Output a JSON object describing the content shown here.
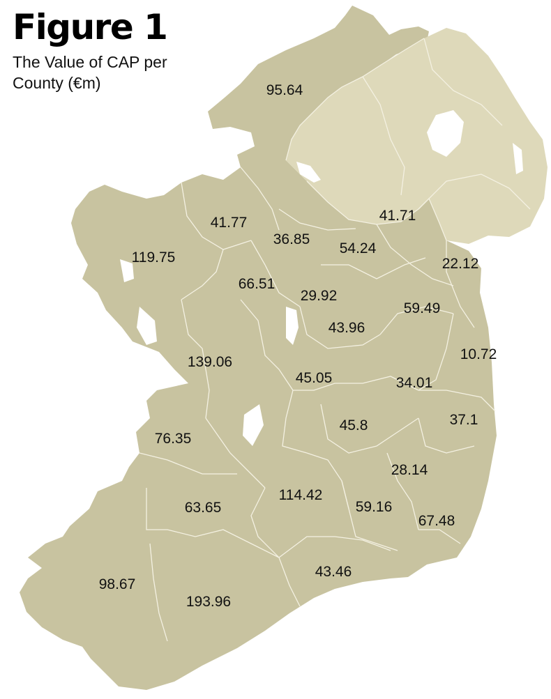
{
  "figure": {
    "heading": "Figure 1",
    "caption": "The Value of CAP per County (€m)"
  },
  "colors": {
    "republic_land": "#c8c3a0",
    "northern_ireland_land": "#ded9ba",
    "county_border": "#f4f1e2",
    "water": "#ffffff"
  },
  "county_values": [
    {
      "value": "95.64"
    },
    {
      "value": "41.77"
    },
    {
      "value": "41.71"
    },
    {
      "value": "36.85"
    },
    {
      "value": "54.24"
    },
    {
      "value": "119.75"
    },
    {
      "value": "22.12"
    },
    {
      "value": "66.51"
    },
    {
      "value": "29.92"
    },
    {
      "value": "59.49"
    },
    {
      "value": "43.96"
    },
    {
      "value": "10.72"
    },
    {
      "value": "139.06"
    },
    {
      "value": "45.05"
    },
    {
      "value": "34.01"
    },
    {
      "value": "37.1"
    },
    {
      "value": "76.35"
    },
    {
      "value": "45.8"
    },
    {
      "value": "28.14"
    },
    {
      "value": "63.65"
    },
    {
      "value": "114.42"
    },
    {
      "value": "59.16"
    },
    {
      "value": "67.48"
    },
    {
      "value": "43.46"
    },
    {
      "value": "98.67"
    },
    {
      "value": "193.96"
    }
  ]
}
